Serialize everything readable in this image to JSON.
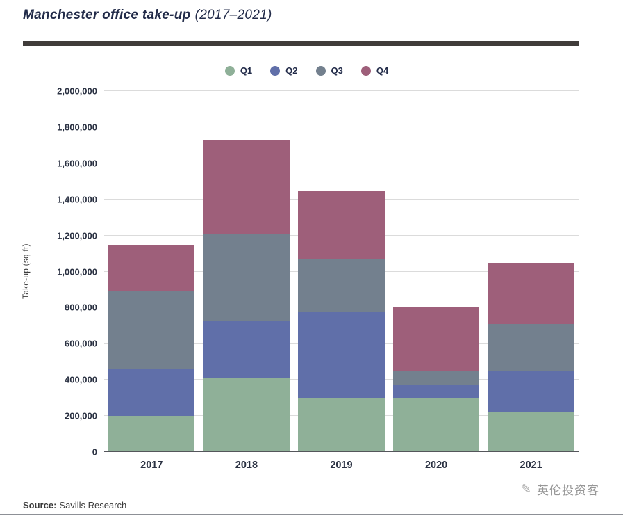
{
  "page": {
    "title_main": "Manchester office take-up",
    "title_period": "(2017–2021)",
    "source_label": "Source:",
    "source_value": "Savills Research",
    "watermark": "英伦投资客"
  },
  "icons": {
    "watermark_logo": "✎"
  },
  "colors": {
    "q1": "#8FB098",
    "q2": "#606FA9",
    "q3": "#73808E",
    "q4": "#9E5F7A",
    "title_text": "#222B49",
    "header_rule": "#403C3A",
    "gridline": "#DBDBDB",
    "axis_line": "#54565B"
  },
  "chart_data": {
    "type": "bar",
    "stacked": true,
    "title": "Manchester office take-up (2017–2021)",
    "ylabel": "Take-up (sq ft)",
    "xlabel": "",
    "categories": [
      "2017",
      "2018",
      "2019",
      "2020",
      "2021"
    ],
    "series": [
      {
        "name": "Q1",
        "color": "#8FB098",
        "values": [
          200000,
          410000,
          300000,
          300000,
          220000
        ]
      },
      {
        "name": "Q2",
        "color": "#606FA9",
        "values": [
          260000,
          320000,
          480000,
          70000,
          230000
        ]
      },
      {
        "name": "Q3",
        "color": "#73808E",
        "values": [
          430000,
          480000,
          290000,
          80000,
          260000
        ]
      },
      {
        "name": "Q4",
        "color": "#9E5F7A",
        "values": [
          260000,
          520000,
          380000,
          350000,
          340000
        ]
      }
    ],
    "totals": [
      1150000,
      1730000,
      1450000,
      800000,
      1050000
    ],
    "ylim": [
      0,
      2000000
    ],
    "ytick_step": 200000,
    "grid": true,
    "legend_position": "top"
  }
}
